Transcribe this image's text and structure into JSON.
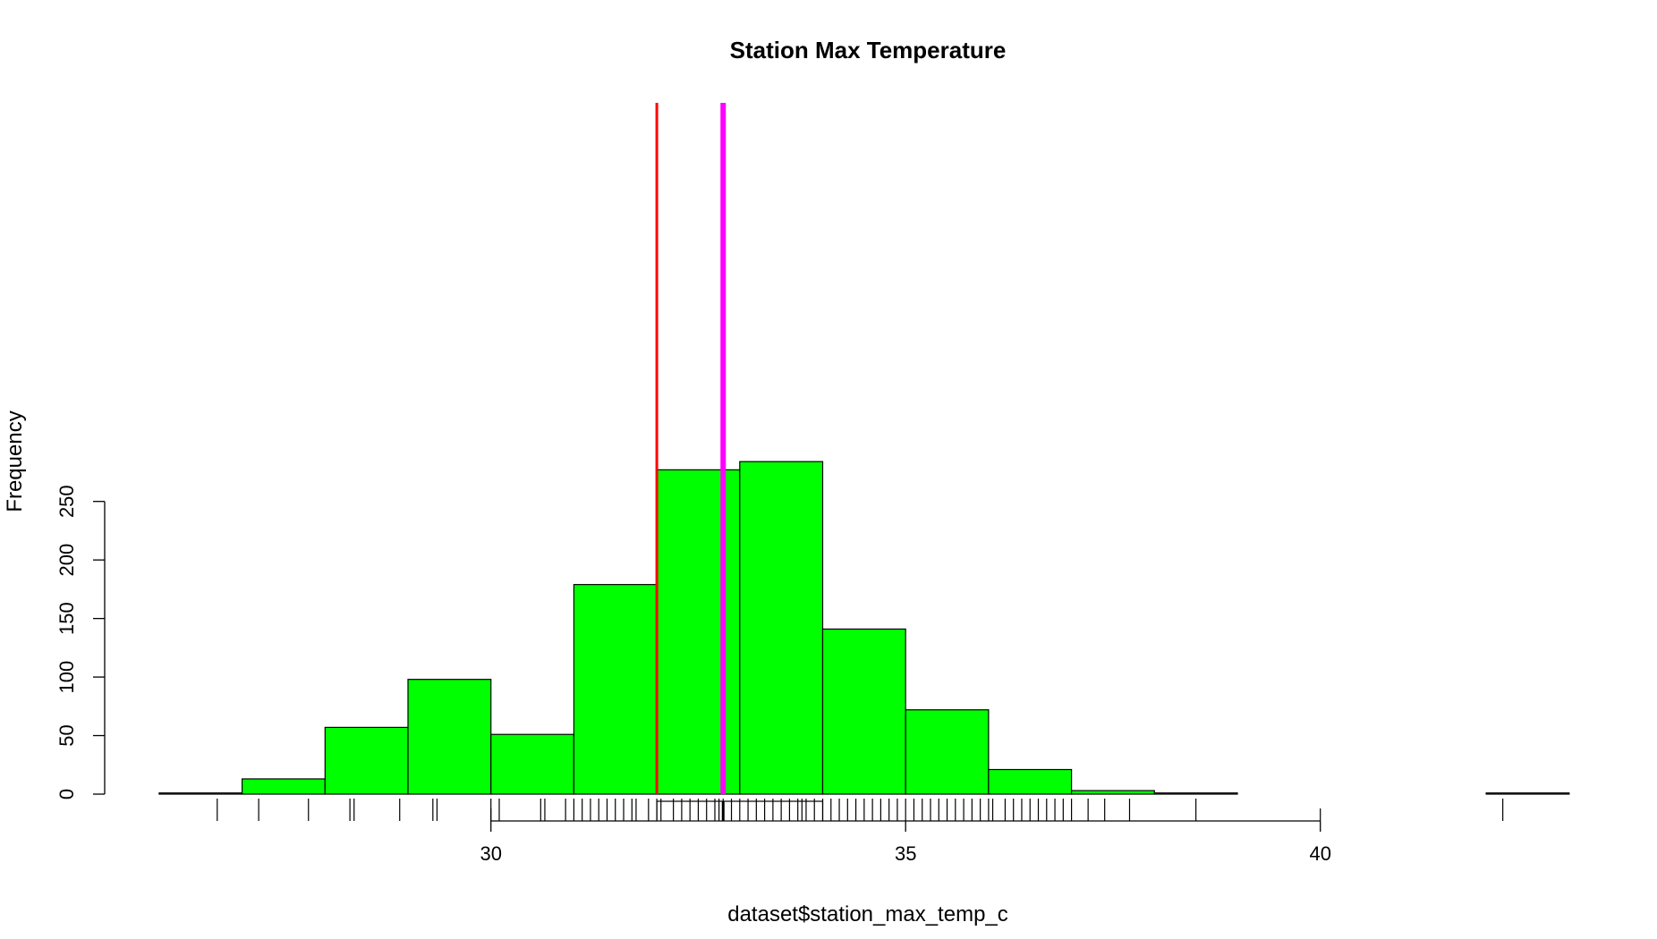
{
  "chart_data": {
    "type": "bar",
    "title": "Station Max Temperature",
    "xlabel": "dataset$station_max_temp_c",
    "ylabel": "Frequency",
    "xlim": [
      25.7,
      43.3
    ],
    "ylim": [
      0,
      296
    ],
    "x_ticks": [
      30,
      35,
      40
    ],
    "y_ticks": [
      0,
      50,
      100,
      150,
      200,
      250
    ],
    "bin_width": 1,
    "bins": [
      {
        "start": 26,
        "end": 27,
        "count": 1
      },
      {
        "start": 27,
        "end": 28,
        "count": 13
      },
      {
        "start": 28,
        "end": 29,
        "count": 57
      },
      {
        "start": 29,
        "end": 30,
        "count": 98
      },
      {
        "start": 30,
        "end": 31,
        "count": 51
      },
      {
        "start": 31,
        "end": 32,
        "count": 179
      },
      {
        "start": 32,
        "end": 33,
        "count": 277
      },
      {
        "start": 33,
        "end": 34,
        "count": 284
      },
      {
        "start": 34,
        "end": 35,
        "count": 141
      },
      {
        "start": 35,
        "end": 36,
        "count": 72
      },
      {
        "start": 36,
        "end": 37,
        "count": 21
      },
      {
        "start": 37,
        "end": 38,
        "count": 3
      },
      {
        "start": 38,
        "end": 39,
        "count": 1
      },
      {
        "start": 39,
        "end": 40,
        "count": 0
      },
      {
        "start": 40,
        "end": 41,
        "count": 0
      },
      {
        "start": 41,
        "end": 42,
        "count": 0
      },
      {
        "start": 42,
        "end": 43,
        "count": 1
      }
    ],
    "vlines": [
      {
        "x": 32.0,
        "color": "#ff0000"
      },
      {
        "x": 32.8,
        "color": "#ff00ff"
      }
    ],
    "boxplot": {
      "whisker_low": 30.0,
      "q1": 32.0,
      "median": 32.8,
      "q3": 34.0,
      "whisker_high": 40.0
    },
    "rug": [
      26.7,
      27.2,
      27.8,
      28.3,
      28.35,
      28.9,
      29.3,
      29.35,
      30.0,
      30.1,
      30.6,
      30.65,
      30.9,
      31.0,
      31.1,
      31.2,
      31.3,
      31.4,
      31.5,
      31.6,
      31.7,
      31.75,
      31.9,
      32.0,
      32.05,
      32.2,
      32.3,
      32.4,
      32.5,
      32.6,
      32.7,
      32.75,
      32.8,
      32.9,
      33.0,
      33.1,
      33.2,
      33.3,
      33.4,
      33.5,
      33.6,
      33.7,
      33.75,
      33.8,
      33.9,
      34.0,
      34.1,
      34.2,
      34.3,
      34.4,
      34.5,
      34.6,
      34.7,
      34.8,
      34.9,
      35.0,
      35.1,
      35.2,
      35.3,
      35.4,
      35.5,
      35.6,
      35.7,
      35.8,
      35.9,
      36.0,
      36.05,
      36.2,
      36.3,
      36.4,
      36.5,
      36.6,
      36.7,
      36.8,
      36.9,
      37.0,
      37.2,
      37.4,
      37.7,
      38.5,
      42.2
    ],
    "colors": {
      "bar_fill": "#00ff00",
      "bar_stroke": "#000000"
    }
  }
}
